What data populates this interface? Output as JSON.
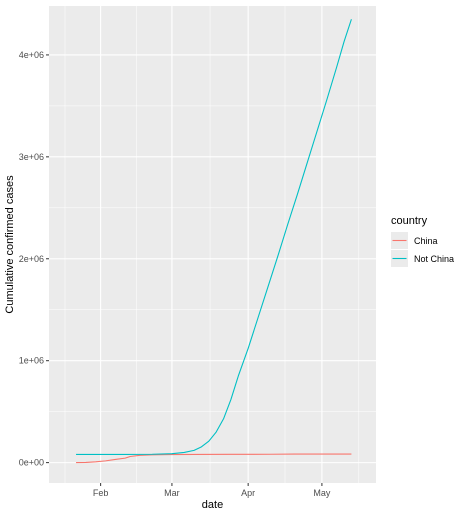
{
  "chart_data": {
    "type": "line",
    "xlabel": "date",
    "ylabel": "Cumulative confirmed cases",
    "x_ticks": [
      {
        "date": "2020-02-01",
        "label": "Feb"
      },
      {
        "date": "2020-03-01",
        "label": "Mar"
      },
      {
        "date": "2020-04-01",
        "label": "Apr"
      },
      {
        "date": "2020-05-01",
        "label": "May"
      }
    ],
    "y_ticks": [
      {
        "value": 0,
        "label": "0e+00"
      },
      {
        "value": 1000000,
        "label": "1e+06"
      },
      {
        "value": 2000000,
        "label": "2e+06"
      },
      {
        "value": 3000000,
        "label": "3e+06"
      },
      {
        "value": 4000000,
        "label": "4e+06"
      }
    ],
    "xlim": [
      "2020-01-11",
      "2020-05-23"
    ],
    "ylim": [
      -200000,
      4480000
    ],
    "grid": true,
    "legend": {
      "title": "country",
      "position": "right"
    },
    "series": [
      {
        "name": "China",
        "color": "#F8766D",
        "points": [
          [
            "2020-01-22",
            548
          ],
          [
            "2020-01-26",
            2000
          ],
          [
            "2020-01-30",
            8000
          ],
          [
            "2020-02-03",
            17000
          ],
          [
            "2020-02-07",
            31000
          ],
          [
            "2020-02-11",
            44000
          ],
          [
            "2020-02-13",
            60000
          ],
          [
            "2020-02-17",
            72000
          ],
          [
            "2020-02-22",
            76000
          ],
          [
            "2020-02-29",
            79000
          ],
          [
            "2020-03-10",
            80700
          ],
          [
            "2020-03-25",
            81600
          ],
          [
            "2020-04-10",
            82000
          ],
          [
            "2020-04-20",
            83800
          ],
          [
            "2020-05-01",
            83900
          ],
          [
            "2020-05-13",
            84000
          ]
        ]
      },
      {
        "name": "Not China",
        "color": "#00BFC4",
        "points": [
          [
            "2020-01-22",
            80000
          ],
          [
            "2020-02-10",
            80000
          ],
          [
            "2020-02-22",
            82000
          ],
          [
            "2020-03-01",
            88000
          ],
          [
            "2020-03-06",
            100000
          ],
          [
            "2020-03-10",
            120000
          ],
          [
            "2020-03-13",
            155000
          ],
          [
            "2020-03-16",
            210000
          ],
          [
            "2020-03-19",
            300000
          ],
          [
            "2020-03-22",
            430000
          ],
          [
            "2020-03-25",
            620000
          ],
          [
            "2020-03-28",
            850000
          ],
          [
            "2020-04-01",
            1120000
          ],
          [
            "2020-04-05",
            1420000
          ],
          [
            "2020-04-09",
            1720000
          ],
          [
            "2020-04-13",
            2020000
          ],
          [
            "2020-04-17",
            2330000
          ],
          [
            "2020-04-21",
            2630000
          ],
          [
            "2020-04-25",
            2940000
          ],
          [
            "2020-04-29",
            3250000
          ],
          [
            "2020-05-03",
            3560000
          ],
          [
            "2020-05-07",
            3880000
          ],
          [
            "2020-05-10",
            4130000
          ],
          [
            "2020-05-13",
            4350000
          ]
        ]
      }
    ]
  }
}
